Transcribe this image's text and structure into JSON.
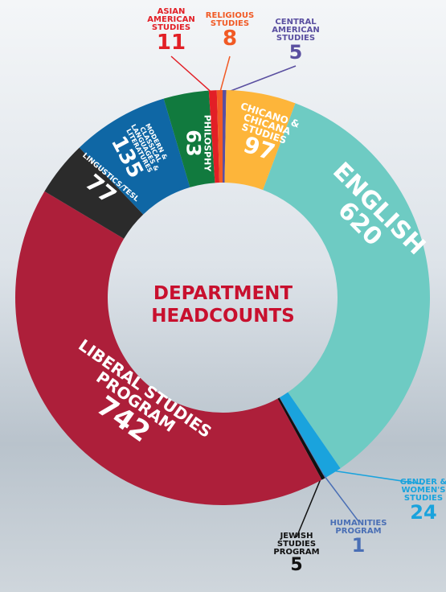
{
  "chart_data": {
    "type": "donut",
    "title": "DEPARTMENT HEADCOUNTS",
    "categories": [
      "CENTRAL AMERICAN STUDIES",
      "CHICANO & CHICANA STUDIES",
      "ENGLISH",
      "GENDER & WOMEN'S STUDIES",
      "HUMANITIES PROGRAM",
      "JEWISH STUDIES PROGRAM",
      "LIBERAL STUDIES PROGRAM",
      "LINGUSTICS/TESL",
      "MODERN & CLASSICAL LANGUAGES & LITERATURES",
      "PHILOSPHY",
      "ASIAN AMERICAN STUDIES",
      "RELIGIOUS STUDIES"
    ],
    "values": [
      5,
      97,
      620,
      24,
      1,
      5,
      742,
      77,
      135,
      63,
      11,
      8
    ],
    "colors": [
      "#5a4fa0",
      "#fdb53a",
      "#6ecbc3",
      "#1aa3dd",
      "#4a6fb5",
      "#111111",
      "#ad1f3a",
      "#2b2b2b",
      "#0f67a5",
      "#117a3e",
      "#e21f26",
      "#f15a25"
    ]
  }
}
